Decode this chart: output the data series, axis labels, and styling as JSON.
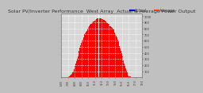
{
  "title": "Solar PV/Inverter Performance  West Array  Actual & Average Power Output",
  "bg_color": "#c0c0c0",
  "plot_bg_color": "#d8d8d8",
  "grid_color": "#ffffff",
  "bar_color": "#ff0000",
  "avg_color": "#ff6600",
  "actual_color": "#ff0000",
  "legend_actual_color": "#0000ff",
  "legend_avg_color": "#ff4400",
  "ylabel_color": "#000000",
  "n_bars": 120,
  "peak_value": 1.0,
  "ylim": [
    0,
    1
  ],
  "title_fontsize": 4.5,
  "tick_fontsize": 3.0,
  "legend_fontsize": 3.5,
  "x_labels": [
    "6:00",
    "8:00",
    "10:00",
    "12:00",
    "14:00",
    "16:00",
    "18:00",
    "20:00"
  ],
  "y_labels": [
    "800",
    "700",
    "600",
    "500",
    "400",
    "300",
    "200",
    "100"
  ],
  "bar_heights": [
    0.0,
    0.0,
    0.0,
    0.0,
    0.0,
    0.0,
    0.0,
    0.0,
    0.0,
    0.0,
    0.01,
    0.01,
    0.02,
    0.03,
    0.04,
    0.06,
    0.08,
    0.1,
    0.13,
    0.16,
    0.19,
    0.22,
    0.26,
    0.3,
    0.34,
    0.38,
    0.43,
    0.48,
    0.52,
    0.56,
    0.6,
    0.62,
    0.58,
    0.65,
    0.7,
    0.72,
    0.74,
    0.76,
    0.78,
    0.8,
    0.82,
    0.84,
    0.86,
    0.87,
    0.88,
    0.89,
    0.9,
    0.91,
    0.92,
    0.93,
    0.94,
    0.95,
    0.95,
    0.96,
    0.96,
    0.97,
    0.97,
    0.97,
    0.96,
    0.96,
    0.95,
    0.95,
    0.94,
    0.94,
    0.93,
    0.92,
    0.91,
    0.9,
    0.89,
    0.88,
    0.87,
    0.85,
    0.84,
    0.83,
    0.82,
    0.81,
    0.8,
    0.78,
    0.76,
    0.73,
    0.71,
    0.68,
    0.65,
    0.62,
    0.59,
    0.55,
    0.51,
    0.47,
    0.43,
    0.39,
    0.35,
    0.31,
    0.27,
    0.23,
    0.19,
    0.15,
    0.11,
    0.08,
    0.05,
    0.03,
    0.02,
    0.01,
    0.01,
    0.0,
    0.0,
    0.0,
    0.0,
    0.0,
    0.0,
    0.0,
    0.0,
    0.0,
    0.0,
    0.0,
    0.0,
    0.0,
    0.0,
    0.0,
    0.0,
    0.0
  ],
  "avg_heights": [
    0.0,
    0.0,
    0.0,
    0.0,
    0.0,
    0.0,
    0.0,
    0.0,
    0.0,
    0.0,
    0.01,
    0.01,
    0.02,
    0.03,
    0.04,
    0.06,
    0.08,
    0.1,
    0.13,
    0.16,
    0.19,
    0.22,
    0.26,
    0.3,
    0.34,
    0.38,
    0.43,
    0.48,
    0.52,
    0.56,
    0.6,
    0.62,
    0.58,
    0.65,
    0.7,
    0.72,
    0.74,
    0.76,
    0.78,
    0.8,
    0.82,
    0.84,
    0.86,
    0.87,
    0.88,
    0.89,
    0.9,
    0.91,
    0.92,
    0.93,
    0.94,
    0.95,
    0.95,
    0.96,
    0.96,
    0.97,
    0.97,
    0.97,
    0.96,
    0.96,
    0.95,
    0.95,
    0.94,
    0.94,
    0.93,
    0.92,
    0.91,
    0.9,
    0.89,
    0.88,
    0.87,
    0.85,
    0.84,
    0.83,
    0.82,
    0.81,
    0.8,
    0.78,
    0.76,
    0.73,
    0.71,
    0.68,
    0.65,
    0.62,
    0.59,
    0.55,
    0.51,
    0.47,
    0.43,
    0.39,
    0.35,
    0.31,
    0.27,
    0.23,
    0.19,
    0.15,
    0.11,
    0.08,
    0.05,
    0.03,
    0.02,
    0.01,
    0.01,
    0.0,
    0.0,
    0.0,
    0.0,
    0.0,
    0.0,
    0.0,
    0.0,
    0.0,
    0.0,
    0.0,
    0.0,
    0.0,
    0.0,
    0.0,
    0.0,
    0.0
  ]
}
